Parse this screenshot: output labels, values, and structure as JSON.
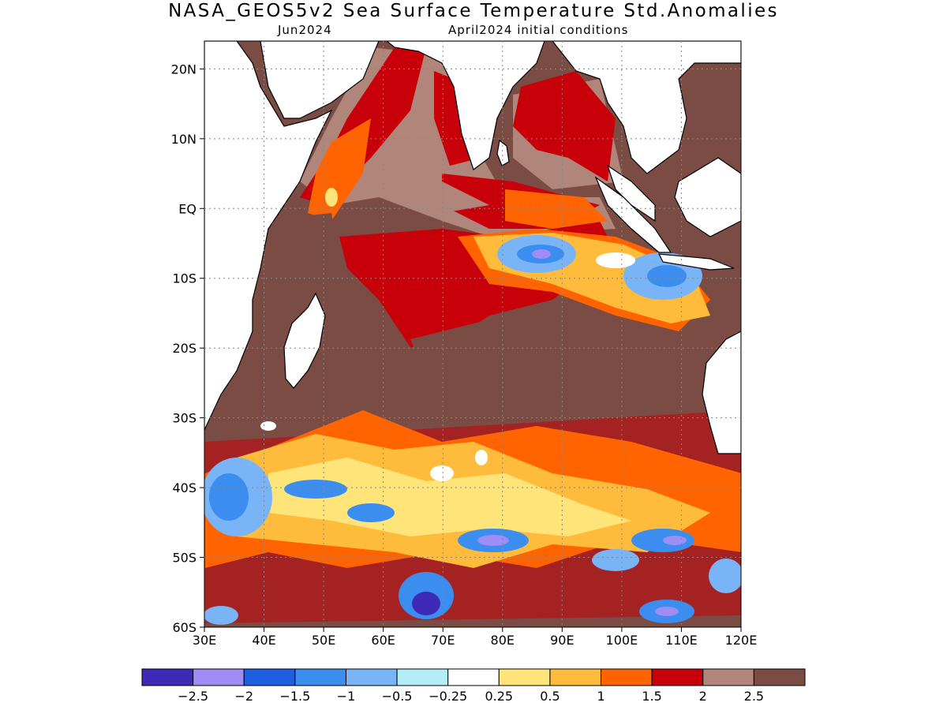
{
  "header": {
    "title": "NASA_GEOS5v2 Sea Surface Temperature Std.Anomalies",
    "month": "Jun2024",
    "init": "April2024 initial conditions"
  },
  "axes": {
    "lon_labels": [
      "30E",
      "40E",
      "50E",
      "60E",
      "70E",
      "80E",
      "90E",
      "100E",
      "110E",
      "120E"
    ],
    "lat_labels": [
      "20N",
      "10N",
      "EQ",
      "10S",
      "20S",
      "30S",
      "40S",
      "50S",
      "60S"
    ],
    "lon_range": [
      30,
      120
    ],
    "lat_range": [
      -60,
      24
    ]
  },
  "colorbar": {
    "colors": [
      "#3e2ab7",
      "#9f8cf5",
      "#1d5fe0",
      "#3b8ef0",
      "#79b5f6",
      "#b2edf8",
      "#ffffff",
      "#ffe47a",
      "#ffbb3c",
      "#ff6400",
      "#c8000a",
      "#b0857a",
      "#7a4c43"
    ],
    "labels": [
      "−2.5",
      "−2",
      "−1.5",
      "−1",
      "−0.5",
      "−0.25",
      "0.25",
      "0.5",
      "1",
      "1.5",
      "2",
      "2.5"
    ]
  }
}
